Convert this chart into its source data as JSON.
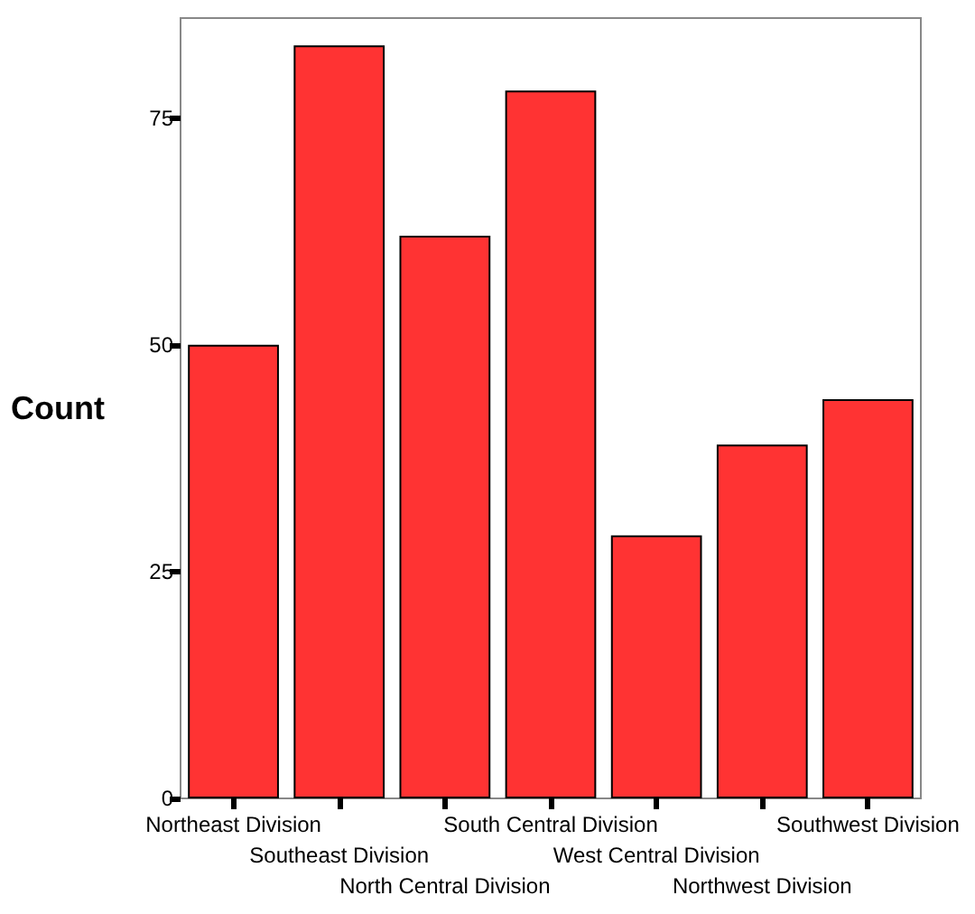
{
  "chart_data": {
    "type": "bar",
    "ylabel": "Count",
    "categories": [
      "Northeast Division",
      "Southeast Division",
      "North Central Division",
      "South Central Division",
      "West Central Division",
      "Northwest Division",
      "Southwest Division"
    ],
    "values": [
      50,
      83,
      62,
      78,
      29,
      39,
      44
    ],
    "color": "#ff3333",
    "ylim": [
      0,
      86
    ],
    "yticks": [
      0,
      25,
      50,
      75
    ],
    "grid": false
  }
}
